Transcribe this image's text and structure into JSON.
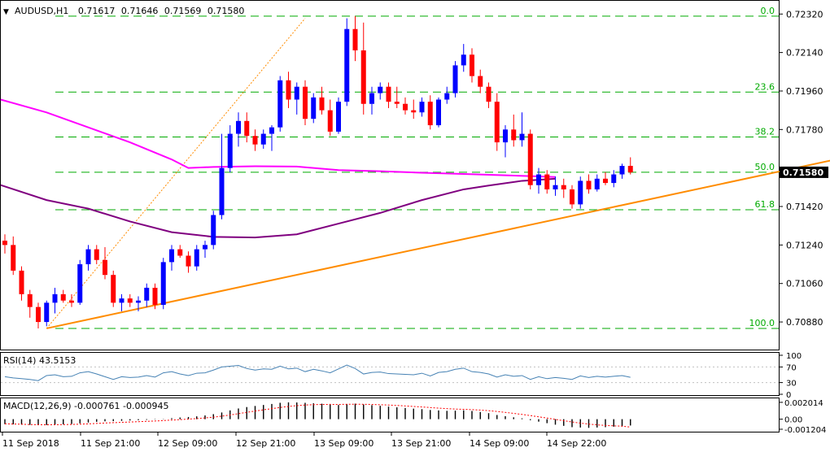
{
  "chart_data": {
    "type": "candlestick",
    "header": {
      "symbol": "AUDUSD,H1",
      "ohlc": [
        "0.71617",
        "0.71646",
        "0.71569",
        "0.71580"
      ]
    },
    "price_panel": {
      "ylim": [
        0.7077,
        0.7234
      ],
      "y_tick_labels": [
        "0.72320",
        "0.72140",
        "0.71960",
        "0.71780",
        "0.71420",
        "0.71240",
        "0.71060",
        "0.70880"
      ],
      "y_ticks": [
        0.7232,
        0.7214,
        0.7196,
        0.7178,
        0.7142,
        0.7124,
        0.7106,
        0.7088
      ],
      "current_price": {
        "label": "0.71580",
        "value": 0.7158
      },
      "fibonacci": [
        {
          "label": "0.0",
          "value": 0.7231
        },
        {
          "label": "23.6",
          "value": 0.71955
        },
        {
          "label": "38.2",
          "value": 0.71745
        },
        {
          "label": "50.0",
          "value": 0.7158
        },
        {
          "label": "61.8",
          "value": 0.71405
        },
        {
          "label": "100.0",
          "value": 0.7085
        }
      ],
      "trendline": {
        "from": [
          5,
          0.7085
        ],
        "to": [
          102,
          0.7166
        ]
      },
      "fib_leg": {
        "from": [
          5,
          0.7085
        ],
        "to": [
          36,
          0.723
        ]
      },
      "sma_pink": [
        [
          -0.5,
          0.7192
        ],
        [
          5,
          0.7186
        ],
        [
          10,
          0.7179
        ],
        [
          15,
          0.7172
        ],
        [
          20,
          0.7164
        ],
        [
          22,
          0.716
        ],
        [
          25,
          0.71605
        ],
        [
          30,
          0.71608
        ],
        [
          35,
          0.71607
        ],
        [
          40,
          0.7159
        ],
        [
          45,
          0.71585
        ],
        [
          50,
          0.71578
        ],
        [
          55,
          0.71572
        ],
        [
          60,
          0.71566
        ],
        [
          63,
          0.71562
        ],
        [
          66,
          0.71558
        ]
      ],
      "sma_purple": [
        [
          -0.5,
          0.7152
        ],
        [
          5,
          0.7145
        ],
        [
          10,
          0.7141
        ],
        [
          15,
          0.7135
        ],
        [
          20,
          0.713
        ],
        [
          25,
          0.71278
        ],
        [
          30,
          0.71275
        ],
        [
          35,
          0.7129
        ],
        [
          40,
          0.7134
        ],
        [
          45,
          0.7139
        ],
        [
          50,
          0.7145
        ],
        [
          55,
          0.715
        ],
        [
          58,
          0.71518
        ],
        [
          62,
          0.7154
        ],
        [
          66,
          0.7155
        ]
      ],
      "candles": [
        [
          0.7126,
          0.7129,
          0.712,
          0.7124
        ],
        [
          0.7124,
          0.7128,
          0.711,
          0.7112
        ],
        [
          0.7112,
          0.7114,
          0.7098,
          0.7101
        ],
        [
          0.7101,
          0.7103,
          0.709,
          0.7095
        ],
        [
          0.7095,
          0.7097,
          0.7085,
          0.7088
        ],
        [
          0.7088,
          0.7098,
          0.7086,
          0.7097
        ],
        [
          0.7097,
          0.7104,
          0.7092,
          0.7101
        ],
        [
          0.7101,
          0.7103,
          0.7097,
          0.7098
        ],
        [
          0.7098,
          0.7101,
          0.7095,
          0.7097
        ],
        [
          0.7097,
          0.7117,
          0.7096,
          0.7115
        ],
        [
          0.7115,
          0.7124,
          0.7112,
          0.7122
        ],
        [
          0.7122,
          0.7124,
          0.7115,
          0.7117
        ],
        [
          0.7117,
          0.7123,
          0.7108,
          0.711
        ],
        [
          0.711,
          0.7112,
          0.7095,
          0.7097
        ],
        [
          0.7097,
          0.7101,
          0.7093,
          0.7099
        ],
        [
          0.7099,
          0.7101,
          0.7095,
          0.7097
        ],
        [
          0.7097,
          0.71,
          0.7093,
          0.7098
        ],
        [
          0.7098,
          0.7106,
          0.7095,
          0.7104
        ],
        [
          0.7104,
          0.7106,
          0.7094,
          0.7096
        ],
        [
          0.7096,
          0.7118,
          0.7094,
          0.7116
        ],
        [
          0.7116,
          0.7124,
          0.7112,
          0.7122
        ],
        [
          0.7122,
          0.7124,
          0.7118,
          0.7119
        ],
        [
          0.7119,
          0.7121,
          0.7111,
          0.7114
        ],
        [
          0.7114,
          0.7124,
          0.7112,
          0.7122
        ],
        [
          0.7122,
          0.7126,
          0.7118,
          0.7124
        ],
        [
          0.7124,
          0.714,
          0.7122,
          0.7138
        ],
        [
          0.7138,
          0.7176,
          0.7136,
          0.716
        ],
        [
          0.716,
          0.718,
          0.7158,
          0.7176
        ],
        [
          0.7176,
          0.7186,
          0.717,
          0.7182
        ],
        [
          0.7182,
          0.7186,
          0.7172,
          0.7175
        ],
        [
          0.7175,
          0.7178,
          0.7168,
          0.7171
        ],
        [
          0.7171,
          0.7178,
          0.7169,
          0.7176
        ],
        [
          0.7176,
          0.718,
          0.7168,
          0.7179
        ],
        [
          0.7179,
          0.7203,
          0.7177,
          0.7201
        ],
        [
          0.7201,
          0.7205,
          0.7188,
          0.7192
        ],
        [
          0.7192,
          0.72,
          0.7185,
          0.7198
        ],
        [
          0.7198,
          0.7201,
          0.718,
          0.7183
        ],
        [
          0.7183,
          0.7195,
          0.7181,
          0.7193
        ],
        [
          0.7193,
          0.7198,
          0.7185,
          0.7187
        ],
        [
          0.7187,
          0.7192,
          0.7175,
          0.7177
        ],
        [
          0.7177,
          0.7193,
          0.7176,
          0.7191
        ],
        [
          0.7191,
          0.723,
          0.7189,
          0.7225
        ],
        [
          0.7225,
          0.7231,
          0.721,
          0.7215
        ],
        [
          0.7215,
          0.7228,
          0.7185,
          0.719
        ],
        [
          0.719,
          0.7198,
          0.7185,
          0.7195
        ],
        [
          0.7195,
          0.72,
          0.7192,
          0.7198
        ],
        [
          0.7198,
          0.72,
          0.7188,
          0.7191
        ],
        [
          0.7191,
          0.7198,
          0.7188,
          0.719
        ],
        [
          0.719,
          0.7193,
          0.7185,
          0.7187
        ],
        [
          0.7187,
          0.7192,
          0.7183,
          0.7186
        ],
        [
          0.7186,
          0.7193,
          0.7184,
          0.7191
        ],
        [
          0.7191,
          0.7194,
          0.7178,
          0.718
        ],
        [
          0.718,
          0.7193,
          0.7179,
          0.7192
        ],
        [
          0.7192,
          0.7198,
          0.719,
          0.7195
        ],
        [
          0.7195,
          0.721,
          0.7193,
          0.7208
        ],
        [
          0.7208,
          0.7218,
          0.7205,
          0.7213
        ],
        [
          0.7213,
          0.7216,
          0.72,
          0.7203
        ],
        [
          0.7203,
          0.7206,
          0.7195,
          0.7198
        ],
        [
          0.7198,
          0.72,
          0.7188,
          0.7191
        ],
        [
          0.7191,
          0.7195,
          0.7168,
          0.7172
        ],
        [
          0.7172,
          0.718,
          0.7165,
          0.7178
        ],
        [
          0.7178,
          0.7185,
          0.717,
          0.7173
        ],
        [
          0.7173,
          0.7186,
          0.717,
          0.7176
        ],
        [
          0.7176,
          0.7178,
          0.715,
          0.7152
        ],
        [
          0.7152,
          0.716,
          0.7148,
          0.7157
        ],
        [
          0.7157,
          0.7159,
          0.7148,
          0.715
        ],
        [
          0.715,
          0.7156,
          0.7147,
          0.7152
        ],
        [
          0.7152,
          0.7155,
          0.7146,
          0.715
        ],
        [
          0.715,
          0.7152,
          0.7141,
          0.7143
        ],
        [
          0.7143,
          0.7156,
          0.7141,
          0.7154
        ],
        [
          0.7154,
          0.7157,
          0.7148,
          0.715
        ],
        [
          0.715,
          0.7157,
          0.7149,
          0.7155
        ],
        [
          0.7155,
          0.7158,
          0.7152,
          0.7153
        ],
        [
          0.7153,
          0.7159,
          0.7151,
          0.7157
        ],
        [
          0.7157,
          0.7162,
          0.7155,
          0.7161
        ],
        [
          0.7161,
          0.7165,
          0.7157,
          0.7158
        ]
      ]
    },
    "rsi_panel": {
      "label": "RSI(14) 43.5153",
      "ylim": [
        0,
        100
      ],
      "y_tick_labels": [
        "100",
        "70",
        "30",
        "0"
      ],
      "y_ticks": [
        100,
        70,
        30,
        0
      ],
      "levels": [
        70,
        30
      ],
      "values": [
        45,
        42,
        40,
        38,
        35,
        48,
        50,
        45,
        46,
        55,
        58,
        52,
        45,
        38,
        45,
        43,
        44,
        48,
        44,
        55,
        58,
        52,
        48,
        54,
        55,
        62,
        70,
        72,
        74,
        66,
        62,
        65,
        64,
        72,
        65,
        67,
        58,
        64,
        60,
        55,
        65,
        75,
        66,
        52,
        56,
        57,
        53,
        52,
        51,
        50,
        54,
        47,
        56,
        58,
        64,
        67,
        58,
        56,
        52,
        44,
        50,
        46,
        48,
        38,
        45,
        40,
        43,
        41,
        38,
        47,
        43,
        46,
        44,
        46,
        48,
        43.5
      ]
    },
    "macd_panel": {
      "label": "MACD(12,26,9) -0.000761 -0.000945",
      "ylim": [
        -0.0014,
        0.0022
      ],
      "y_tick_labels": [
        "0.002014",
        "0.00",
        "-0.001204"
      ],
      "y_ticks": [
        0.002014,
        0,
        -0.001204
      ],
      "histogram": [
        -0.0006,
        -0.00062,
        -0.00065,
        -0.00068,
        -0.00072,
        -0.0007,
        -0.00066,
        -0.00062,
        -0.00058,
        -0.0005,
        -0.0004,
        -0.00032,
        -0.00026,
        -0.00024,
        -0.0002,
        -0.00016,
        -0.00012,
        -8e-05,
        -4e-05,
        3e-05,
        0.00012,
        0.0002,
        0.00026,
        0.00034,
        0.00045,
        0.0006,
        0.0008,
        0.00105,
        0.00128,
        0.00145,
        0.00158,
        0.0017,
        0.00182,
        0.00196,
        0.00201,
        0.002,
        0.00196,
        0.0019,
        0.00185,
        0.00176,
        0.0017,
        0.00182,
        0.00186,
        0.00176,
        0.00168,
        0.0016,
        0.00151,
        0.00142,
        0.00134,
        0.00126,
        0.0012,
        0.0011,
        0.00105,
        0.001,
        0.00102,
        0.00106,
        0.00098,
        0.00086,
        0.00072,
        0.0005,
        0.00036,
        0.00022,
        0.0001,
        -0.00012,
        -0.0003,
        -0.00048,
        -0.00066,
        -0.0008,
        -0.00096,
        -0.001,
        -0.00104,
        -0.001,
        -0.00096,
        -0.0009,
        -0.00084,
        -0.00076
      ],
      "signal": [
        -0.00055,
        -0.00058,
        -0.00061,
        -0.00064,
        -0.00066,
        -0.00067,
        -0.00066,
        -0.00065,
        -0.00063,
        -0.0006,
        -0.00056,
        -0.00051,
        -0.00046,
        -0.00042,
        -0.00038,
        -0.00034,
        -0.0003,
        -0.00026,
        -0.00022,
        -0.00017,
        -0.00011,
        -5e-05,
        1e-05,
        7e-05,
        0.00015,
        0.00024,
        0.00036,
        0.0005,
        0.00066,
        0.00082,
        0.00097,
        0.00112,
        0.00126,
        0.0014,
        0.00152,
        0.00162,
        0.00169,
        0.00174,
        0.00176,
        0.00177,
        0.00176,
        0.00178,
        0.00179,
        0.00178,
        0.00176,
        0.00173,
        0.00169,
        0.00164,
        0.00158,
        0.00152,
        0.00146,
        0.00139,
        0.00132,
        0.00126,
        0.00121,
        0.00118,
        0.00114,
        0.00109,
        0.00102,
        0.00092,
        0.00081,
        0.00069,
        0.00057,
        0.00043,
        0.00028,
        0.00013,
        -3e-05,
        -0.00018,
        -0.00034,
        -0.00047,
        -0.00059,
        -0.00068,
        -0.00075,
        -0.0008,
        -0.00084,
        -0.000945
      ]
    },
    "x_tick_labels": [
      "11 Sep 2018",
      "11 Sep 21:00",
      "12 Sep 09:00",
      "12 Sep 21:00",
      "13 Sep 09:00",
      "13 Sep 21:00",
      "14 Sep 09:00",
      "14 Sep 22:00"
    ],
    "x_tick_index": [
      1,
      16,
      31,
      46,
      61,
      76,
      91,
      106
    ]
  },
  "colors": {
    "bull": "#0000ff",
    "bear": "#ff0000",
    "grid": "#00aa00",
    "fib_text": "#00aa00",
    "sma_pink": "#ff00ff",
    "sma_purple": "#800080",
    "trendline": "#ff8c00",
    "rsi_line": "#4682b4",
    "macd_hist": "#000000",
    "macd_signal": "#ff0000",
    "price_badge_bg": "#000000",
    "price_badge_text": "#ffffff"
  }
}
